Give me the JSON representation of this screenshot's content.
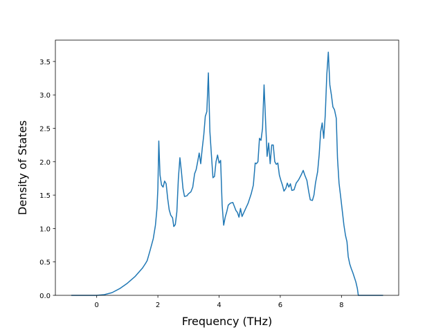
{
  "chart_data": {
    "type": "line",
    "x_label": "Frequency (THz)",
    "y_label": "Density of States",
    "xlim": [
      -1.35,
      9.87
    ],
    "ylim": [
      0,
      3.82
    ],
    "xticks": [
      0,
      2,
      4,
      6,
      8
    ],
    "yticks": [
      {
        "value": 0,
        "label": "0.0"
      },
      {
        "value": 0.5,
        "label": "0.5"
      },
      {
        "value": 1,
        "label": "1.0"
      },
      {
        "value": 1.5,
        "label": "1.5"
      },
      {
        "value": 2,
        "label": "2.0"
      },
      {
        "value": 2.5,
        "label": "2.5"
      },
      {
        "value": 3,
        "label": "3.0"
      },
      {
        "value": 3.5,
        "label": "3.5"
      }
    ],
    "x": [
      -0.83,
      0,
      0.25,
      0.5,
      0.75,
      1.0,
      1.25,
      1.5,
      1.6,
      1.65,
      1.75,
      1.85,
      1.92,
      1.97,
      2.0,
      2.03,
      2.07,
      2.12,
      2.17,
      2.22,
      2.27,
      2.32,
      2.37,
      2.42,
      2.48,
      2.52,
      2.57,
      2.62,
      2.67,
      2.72,
      2.77,
      2.82,
      2.87,
      2.95,
      3.0,
      3.08,
      3.14,
      3.2,
      3.25,
      3.3,
      3.35,
      3.4,
      3.45,
      3.5,
      3.55,
      3.6,
      3.65,
      3.7,
      3.75,
      3.8,
      3.85,
      3.9,
      3.95,
      4.0,
      4.05,
      4.1,
      4.15,
      4.2,
      4.25,
      4.3,
      4.37,
      4.45,
      4.5,
      4.55,
      4.6,
      4.65,
      4.7,
      4.75,
      4.85,
      4.95,
      5.05,
      5.12,
      5.18,
      5.22,
      5.27,
      5.32,
      5.37,
      5.42,
      5.47,
      5.52,
      5.57,
      5.62,
      5.67,
      5.72,
      5.77,
      5.82,
      5.87,
      5.92,
      5.97,
      6.02,
      6.07,
      6.12,
      6.18,
      6.23,
      6.28,
      6.33,
      6.38,
      6.45,
      6.52,
      6.6,
      6.68,
      6.75,
      6.8,
      6.87,
      6.93,
      6.98,
      7.05,
      7.1,
      7.15,
      7.22,
      7.27,
      7.32,
      7.37,
      7.42,
      7.47,
      7.52,
      7.57,
      7.62,
      7.67,
      7.72,
      7.77,
      7.83,
      7.87,
      7.92,
      7.98,
      8.03,
      8.08,
      8.13,
      8.18,
      8.22,
      8.27,
      8.32,
      8.37,
      8.42,
      8.47,
      8.52,
      8.55,
      9.36
    ],
    "series": [
      {
        "color": "#1f77b4",
        "values": [
          0,
          0,
          0.01,
          0.04,
          0.1,
          0.18,
          0.28,
          0.41,
          0.48,
          0.52,
          0.68,
          0.85,
          1.05,
          1.3,
          1.6,
          2.31,
          1.8,
          1.65,
          1.62,
          1.71,
          1.67,
          1.45,
          1.28,
          1.2,
          1.16,
          1.03,
          1.06,
          1.25,
          1.75,
          2.06,
          1.85,
          1.6,
          1.48,
          1.49,
          1.52,
          1.55,
          1.62,
          1.82,
          1.88,
          2.0,
          2.13,
          1.97,
          2.2,
          2.4,
          2.68,
          2.75,
          3.33,
          2.45,
          2.1,
          1.76,
          1.78,
          2.0,
          2.1,
          1.98,
          2.02,
          1.35,
          1.05,
          1.17,
          1.25,
          1.35,
          1.38,
          1.39,
          1.33,
          1.27,
          1.24,
          1.17,
          1.3,
          1.18,
          1.28,
          1.38,
          1.52,
          1.65,
          1.98,
          1.97,
          2.0,
          2.35,
          2.32,
          2.5,
          3.15,
          2.6,
          2.08,
          2.28,
          1.97,
          2.25,
          2.25,
          2.0,
          1.96,
          1.98,
          1.8,
          1.72,
          1.65,
          1.56,
          1.6,
          1.68,
          1.62,
          1.67,
          1.57,
          1.58,
          1.68,
          1.73,
          1.8,
          1.87,
          1.8,
          1.72,
          1.55,
          1.43,
          1.42,
          1.5,
          1.68,
          1.85,
          2.1,
          2.45,
          2.58,
          2.35,
          2.7,
          3.3,
          3.64,
          3.15,
          3.0,
          2.82,
          2.78,
          2.65,
          2.05,
          1.68,
          1.45,
          1.25,
          1.05,
          0.9,
          0.8,
          0.58,
          0.47,
          0.4,
          0.34,
          0.27,
          0.2,
          0.1,
          0,
          0
        ]
      }
    ]
  }
}
